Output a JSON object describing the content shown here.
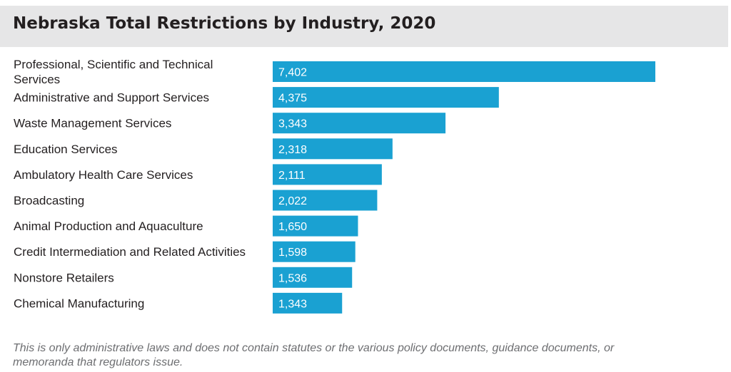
{
  "title": "Nebraska Total Restrictions by Industry, 2020",
  "footnote": "This is only administrative laws and does not contain statutes or the various policy documents, guidance documents, or memoranda that regulators issue.",
  "colors": {
    "bar": "#1aa1d2",
    "title_band": "#e6e6e7",
    "title_text": "#231f20",
    "bar_label": "#ffffff",
    "footnote": "#6d6e71"
  },
  "chart_data": {
    "type": "bar",
    "orientation": "horizontal",
    "title": "Nebraska Total Restrictions by Industry, 2020",
    "xlabel": "",
    "ylabel": "",
    "grid": false,
    "legend": "none",
    "xlim": [
      0,
      7402
    ],
    "categories": [
      [
        "Professional, Scientific and Technical",
        "Services"
      ],
      [
        "Administrative and Support Services"
      ],
      [
        "Waste Management Services"
      ],
      [
        "Education Services"
      ],
      [
        "Ambulatory Health Care Services"
      ],
      [
        "Broadcasting"
      ],
      [
        "Animal Production and Aquaculture"
      ],
      [
        "Credit Intermediation and Related Activities"
      ],
      [
        "Nonstore Retailers"
      ],
      [
        "Chemical Manufacturing"
      ]
    ],
    "values": [
      7402,
      4375,
      3343,
      2318,
      2111,
      2022,
      1650,
      1598,
      1536,
      1343
    ],
    "value_labels": [
      "7,402",
      "4,375",
      "3,343",
      "2,318",
      "2,111",
      "2,022",
      "1,650",
      "1,598",
      "1,536",
      "1,343"
    ]
  }
}
